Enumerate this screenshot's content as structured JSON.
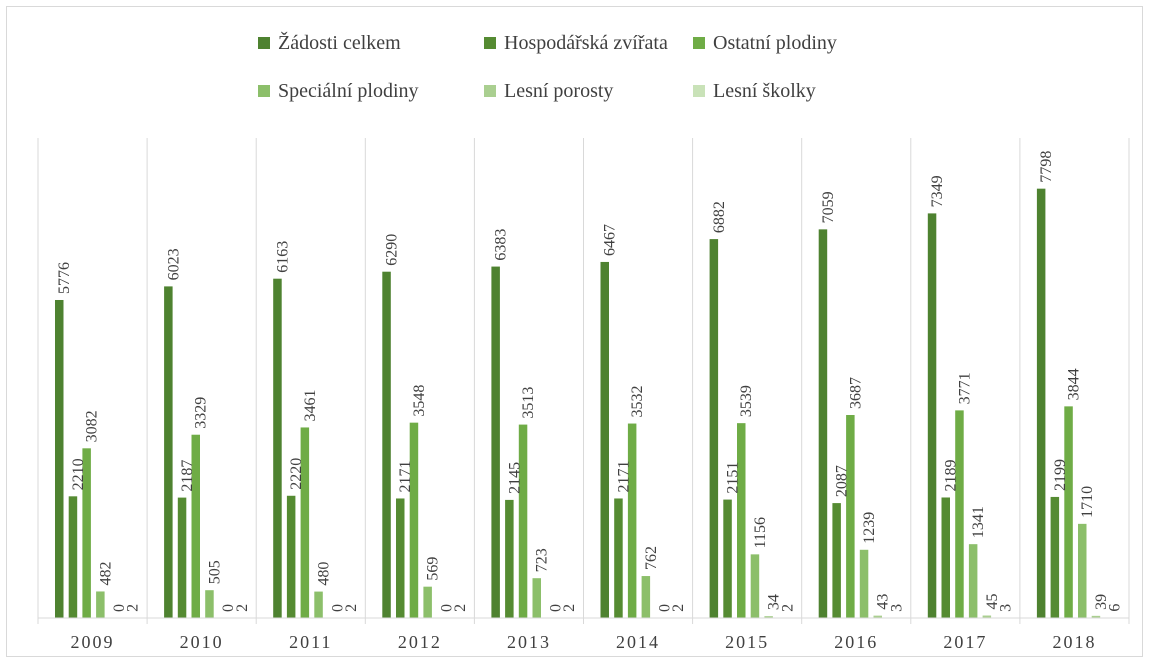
{
  "chart_data": {
    "type": "bar",
    "categories": [
      "2009",
      "2010",
      "2011",
      "2012",
      "2013",
      "2014",
      "2015",
      "2016",
      "2017",
      "2018"
    ],
    "series": [
      {
        "name": "Žádosti celkem",
        "color": "#4e8230",
        "values": [
          5776,
          6023,
          6163,
          6290,
          6383,
          6467,
          6882,
          7059,
          7349,
          7798
        ]
      },
      {
        "name": "Hospodářská zvířata",
        "color": "#558b32",
        "values": [
          2210,
          2187,
          2220,
          2171,
          2145,
          2171,
          2151,
          2087,
          2189,
          2199
        ]
      },
      {
        "name": "Ostatní plodiny",
        "color": "#6fac46",
        "values": [
          3082,
          3329,
          3461,
          3548,
          3513,
          3532,
          3539,
          3687,
          3771,
          3844
        ]
      },
      {
        "name": "Speciální plodiny",
        "color": "#8cbf6a",
        "values": [
          482,
          505,
          480,
          569,
          723,
          762,
          1156,
          1239,
          1341,
          1710
        ]
      },
      {
        "name": "Lesní porosty",
        "color": "#aacf90",
        "values": [
          0,
          0,
          0,
          0,
          0,
          0,
          34,
          43,
          45,
          39
        ]
      },
      {
        "name": "Lesní školky",
        "color": "#c9e2b8",
        "values": [
          2,
          2,
          2,
          2,
          2,
          2,
          2,
          3,
          3,
          6
        ]
      }
    ],
    "ylim": [
      0,
      8900
    ],
    "grid": false,
    "legend_position": "top",
    "title": "",
    "xlabel": "",
    "ylabel": ""
  }
}
